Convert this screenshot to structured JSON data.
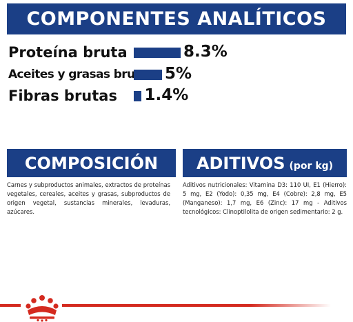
{
  "analytic": {
    "title": "COMPONENTES ANALÍTICOS",
    "rows": [
      {
        "label": "Proteína bruta",
        "value": "8.3%",
        "percent": 8.3
      },
      {
        "label": "Aceites y grasas brutos",
        "value": "5%",
        "percent": 5
      },
      {
        "label": "Fibras brutas",
        "value": "1.4%",
        "percent": 1.4
      }
    ]
  },
  "composition": {
    "title": "COMPOSICIÓN",
    "text": "Carnes y subproductos animales, extractos de proteínas vegetales, cereales, aceites y grasas, subproductos de origen vegetal, sustancias minerales, levaduras, azúcares."
  },
  "additives": {
    "title": "ADITIVOS",
    "title_suffix": "(por kg)",
    "text": "Aditivos nutricionales: Vitamina D3: 110 UI, E1 (Hierro): 5 mg, E2 (Yodo): 0,35 mg, E4 (Cobre): 2,8 mg, E5 (Manganeso): 1,7 mg, E6 (Zinc): 17 mg - Aditivos tecnológicos: Clinoptilolita de origen sedimentario: 2 g."
  },
  "colors": {
    "brand_blue": "#1b3f86",
    "brand_red": "#d42a1f"
  },
  "icons": {
    "footer_logo": "crown-icon"
  }
}
